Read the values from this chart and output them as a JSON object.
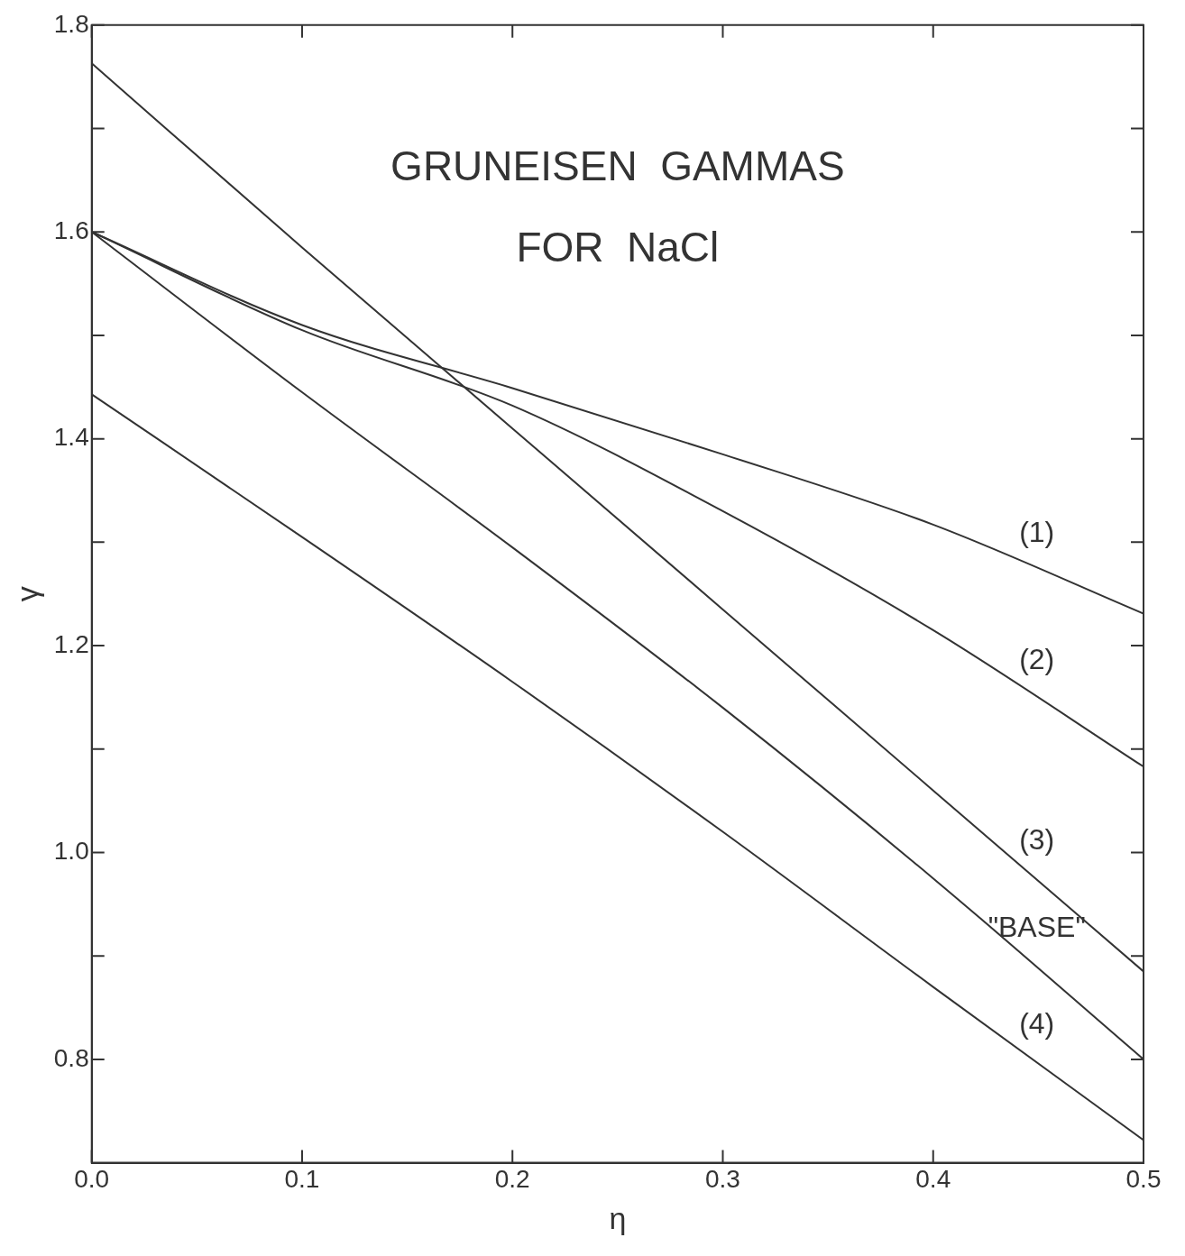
{
  "chart_data": {
    "type": "line",
    "title": "GRUNEISEN GAMMAS FOR NaCl",
    "xlabel": "η",
    "ylabel": "γ",
    "x": [
      0,
      0.1,
      0.2,
      0.3,
      0.4,
      0.5
    ],
    "series": [
      {
        "name": "(1)",
        "color": "#333333",
        "values": [
          1.6,
          1.51,
          1.449,
          1.385,
          1.317,
          1.231
        ]
      },
      {
        "name": "(2)",
        "color": "#333333",
        "values": [
          1.6,
          1.505,
          1.432,
          1.33,
          1.215,
          1.083
        ]
      },
      {
        "name": "(3)",
        "color": "#333333",
        "values": [
          1.763,
          1.585,
          1.41,
          1.235,
          1.06,
          0.885
        ]
      },
      {
        "name": "\"BASE\"",
        "color": "#333333",
        "values": [
          1.6,
          1.445,
          1.295,
          1.14,
          0.975,
          0.8
        ]
      },
      {
        "name": "(4)",
        "color": "#333333",
        "values": [
          1.443,
          1.305,
          1.165,
          1.02,
          0.87,
          0.722
        ]
      }
    ],
    "xlim": [
      0,
      0.5
    ],
    "ylim": [
      0.7,
      1.8
    ],
    "xticks": [
      {
        "value": 0,
        "label": "0.0"
      },
      0.1,
      0.2,
      0.3,
      0.4,
      0.5
    ],
    "yticks": [
      {
        "value": 0.8,
        "label": "0.8"
      },
      {
        "value": 0.9,
        "label": null
      },
      {
        "value": 1.0,
        "label": "1.0"
      },
      {
        "value": 1.1,
        "label": null
      },
      1.2,
      {
        "value": 1.3,
        "label": null
      },
      1.4,
      {
        "value": 1.5,
        "label": null
      },
      1.6,
      {
        "value": 1.7,
        "label": null
      },
      1.8
    ],
    "grid": false,
    "legend": false,
    "marker": "none",
    "line_style": "solid"
  }
}
